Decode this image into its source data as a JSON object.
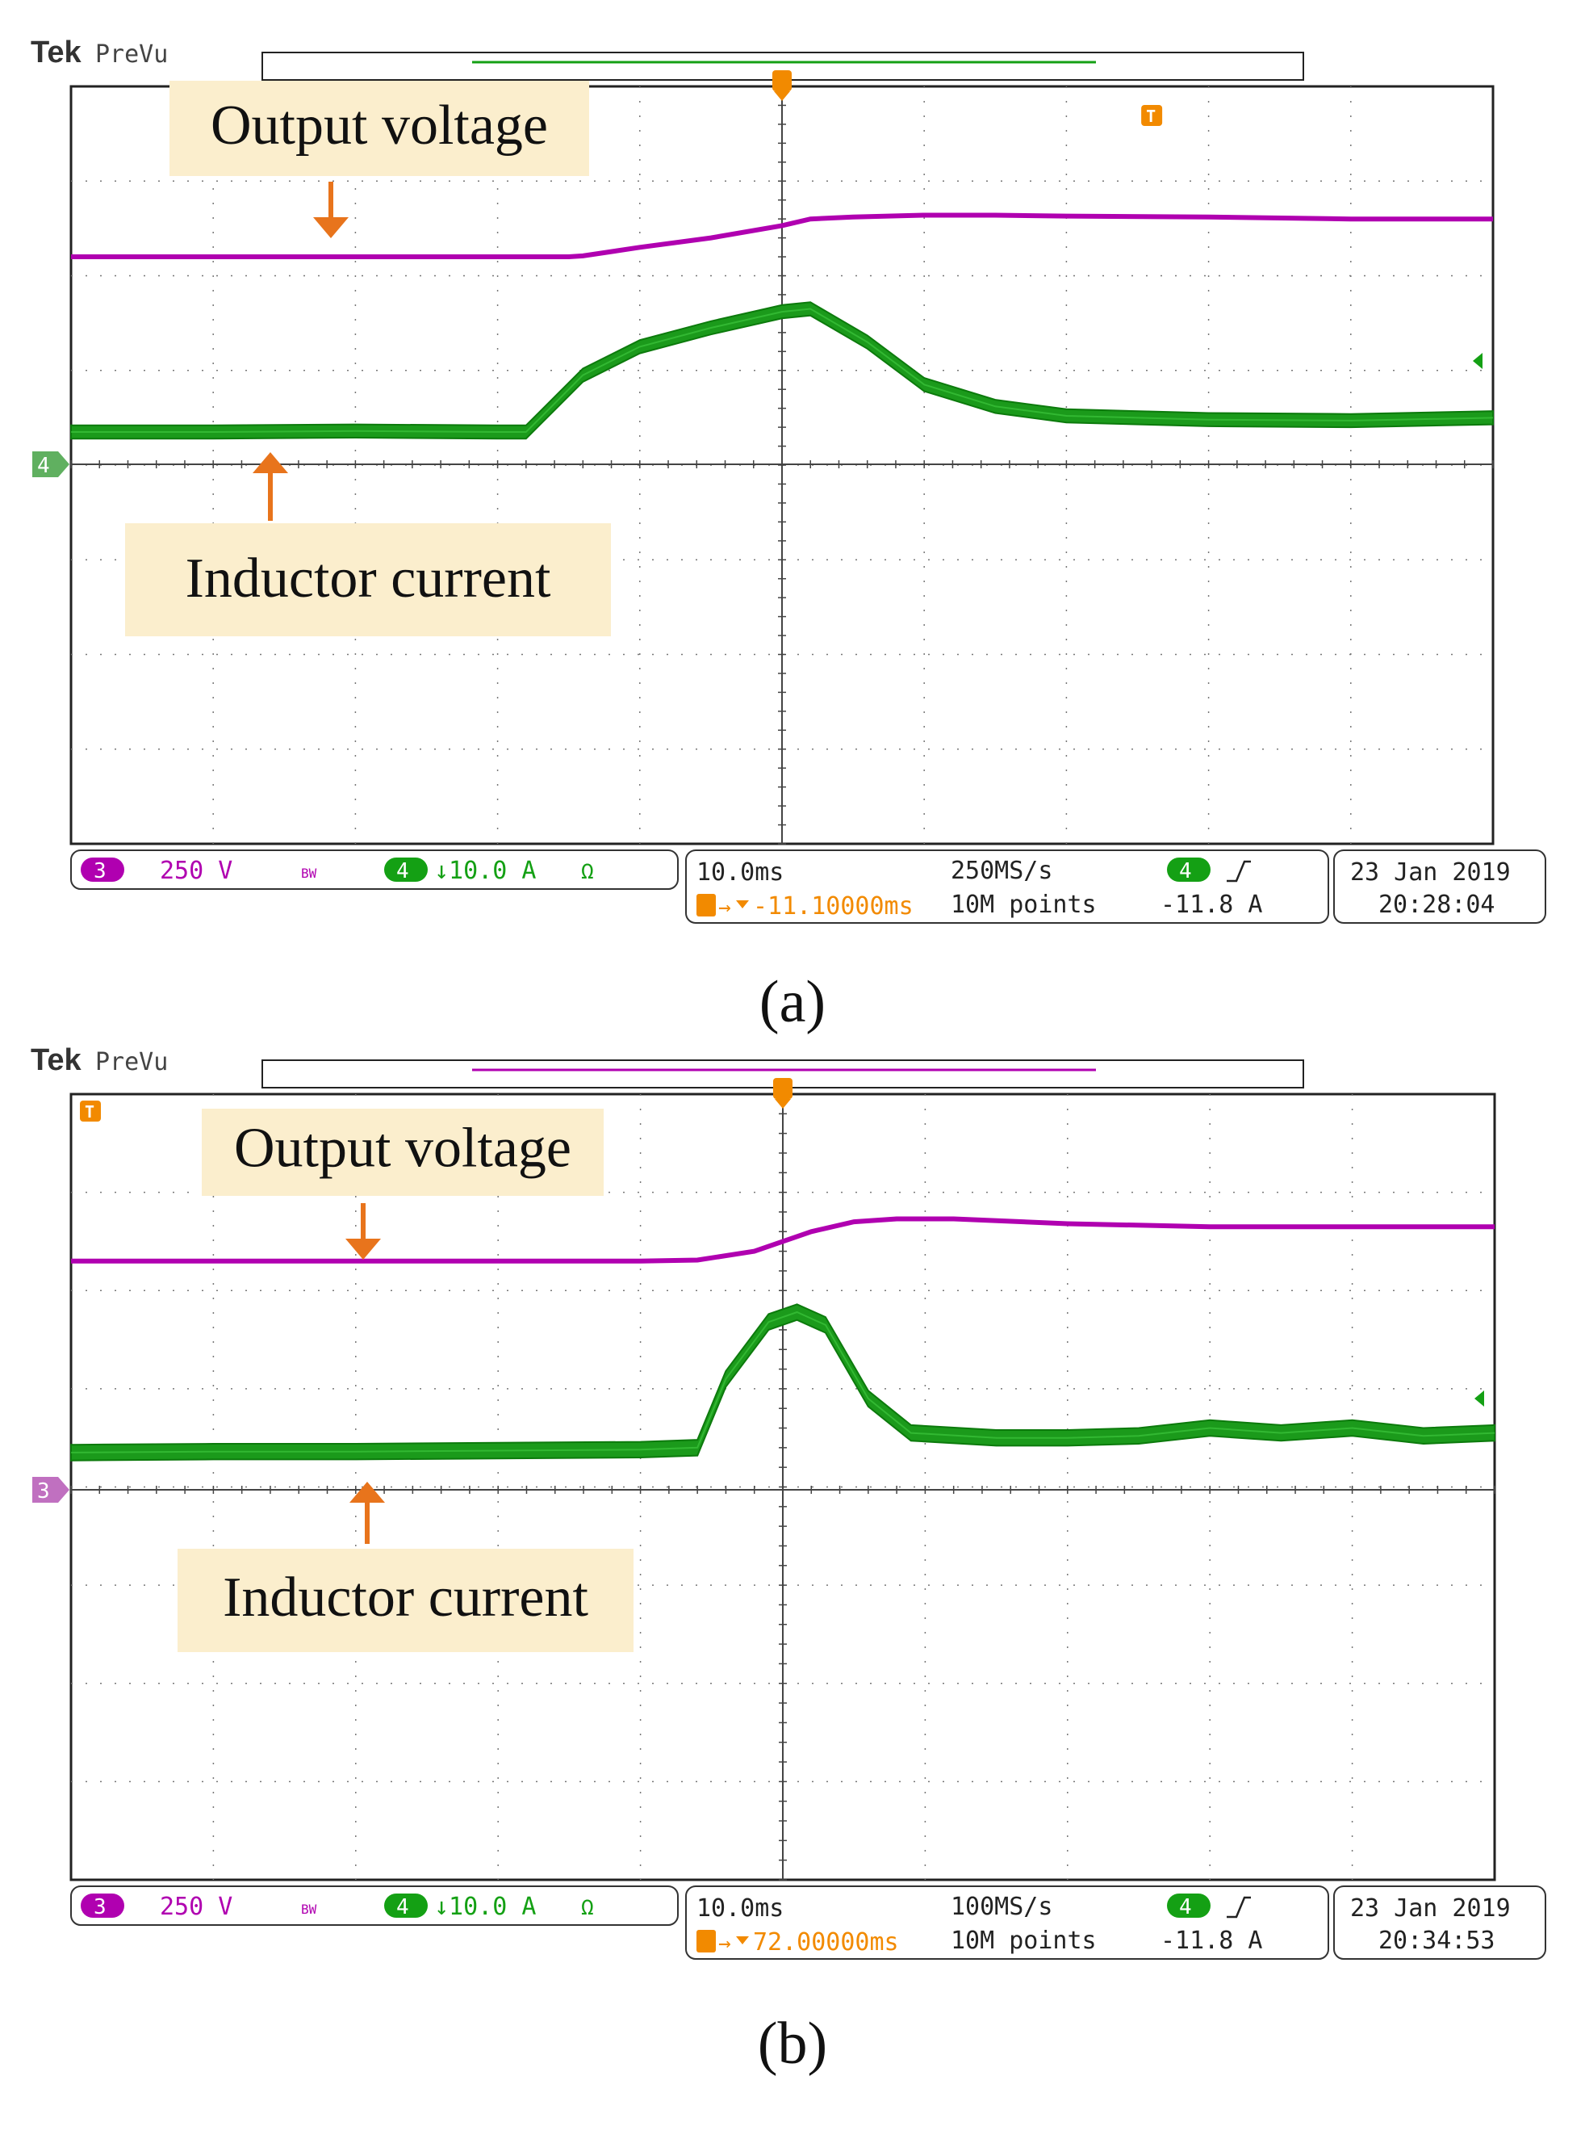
{
  "chart_data": [
    {
      "type": "line",
      "panel_label": "(a)",
      "brand": "Tek",
      "mode": "PreVu",
      "annotations": [
        "Output voltage",
        "Inductor current"
      ],
      "grid": true,
      "colors": {
        "ch3": "#b000b0",
        "ch4": "#14a014",
        "trigger": "#f28a00",
        "annotation_bg": "#fbeecd",
        "arrow": "#e8741c"
      },
      "channels": [
        {
          "id": "3",
          "label": "250 V",
          "color": "#b000b0",
          "bw": "BW"
        },
        {
          "id": "4",
          "label": "↓10.0 A",
          "color": "#14a014",
          "unit": "Ω"
        }
      ],
      "timebase": "10.0ms",
      "sample_rate": "250MS/s",
      "record_length": "10M points",
      "trigger_position": "-11.10000ms",
      "trigger_channel": "4",
      "trigger_level": "-11.8 A",
      "date": "23 Jan  2019",
      "time": "20:28:04",
      "ground_marker": "4",
      "xlim": [
        0,
        10
      ],
      "ylim": [
        -4,
        4
      ],
      "series": [
        {
          "name": "Output voltage",
          "x": [
            0,
            3.5,
            3.6,
            4.0,
            4.5,
            5.0,
            5.2,
            5.5,
            6.0,
            6.5,
            7.0,
            8.0,
            9.0,
            10.0
          ],
          "y": [
            2.2,
            2.2,
            2.21,
            2.3,
            2.4,
            2.53,
            2.6,
            2.62,
            2.64,
            2.64,
            2.63,
            2.62,
            2.6,
            2.6
          ]
        },
        {
          "name": "Inductor current",
          "x": [
            0,
            1,
            2,
            3,
            3.2,
            3.3,
            3.6,
            4.0,
            4.5,
            5.0,
            5.2,
            5.6,
            6.0,
            6.5,
            7.0,
            8.0,
            9.0,
            10.0
          ],
          "y": [
            0.35,
            0.35,
            0.36,
            0.35,
            0.35,
            0.5,
            0.95,
            1.25,
            1.45,
            1.62,
            1.65,
            1.3,
            0.85,
            0.62,
            0.52,
            0.48,
            0.47,
            0.5
          ],
          "ripple": 0.14
        }
      ]
    },
    {
      "type": "line",
      "panel_label": "(b)",
      "brand": "Tek",
      "mode": "PreVu",
      "annotations": [
        "Output voltage",
        "Inductor current"
      ],
      "grid": true,
      "colors": {
        "ch3": "#b000b0",
        "ch4": "#14a014",
        "trigger": "#f28a00",
        "annotation_bg": "#fbeecd",
        "arrow": "#e8741c"
      },
      "channels": [
        {
          "id": "3",
          "label": "250 V",
          "color": "#b000b0",
          "bw": "BW"
        },
        {
          "id": "4",
          "label": "↓10.0 A",
          "color": "#14a014",
          "unit": "Ω"
        }
      ],
      "timebase": "10.0ms",
      "sample_rate": "100MS/s",
      "record_length": "10M points",
      "trigger_position": "72.00000ms",
      "trigger_channel": "4",
      "trigger_level": "-11.8 A",
      "date": "23 Jan  2019",
      "time": "20:34:53",
      "ground_marker": "3",
      "xlim": [
        0,
        10
      ],
      "ylim": [
        -4,
        4
      ],
      "series": [
        {
          "name": "Output voltage",
          "x": [
            0,
            4.0,
            4.4,
            4.8,
            5.2,
            5.5,
            5.8,
            6.2,
            7.0,
            8.0,
            9.0,
            10.0
          ],
          "y": [
            2.3,
            2.3,
            2.31,
            2.4,
            2.6,
            2.7,
            2.73,
            2.73,
            2.68,
            2.65,
            2.65,
            2.65
          ]
        },
        {
          "name": "Inductor current",
          "x": [
            0,
            1,
            2,
            3,
            4,
            4.4,
            4.6,
            4.9,
            5.1,
            5.3,
            5.6,
            5.9,
            6.5,
            7.0,
            7.5,
            8.0,
            8.5,
            9.0,
            9.5,
            10.0
          ],
          "y": [
            0.35,
            0.36,
            0.36,
            0.37,
            0.38,
            0.4,
            1.1,
            1.68,
            1.78,
            1.65,
            0.9,
            0.55,
            0.5,
            0.5,
            0.52,
            0.6,
            0.55,
            0.6,
            0.52,
            0.55
          ],
          "ripple": 0.16
        }
      ]
    }
  ]
}
